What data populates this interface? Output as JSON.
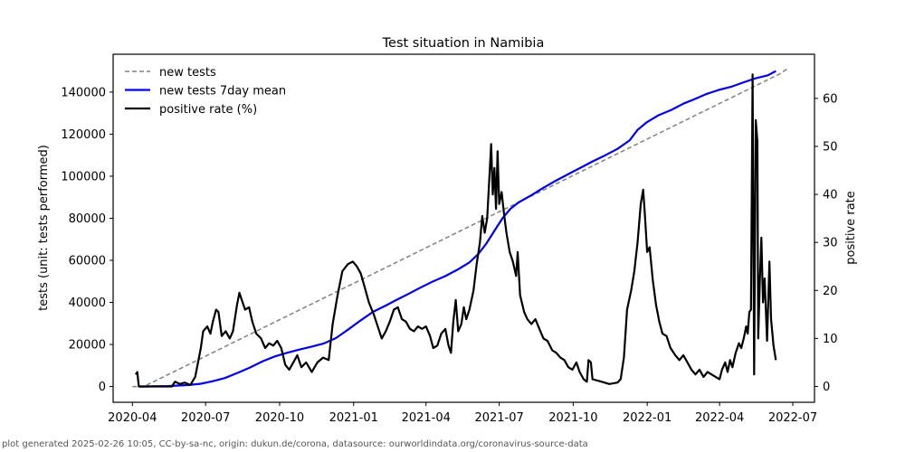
{
  "chart_data": {
    "type": "line",
    "title": "Test situation in Namibia",
    "xlabel": "",
    "ylabel": "tests (unit: tests performed)",
    "y2label": "positive rate",
    "x_ticks": [
      "2020-04",
      "2020-07",
      "2020-10",
      "2021-01",
      "2021-04",
      "2021-07",
      "2021-10",
      "2022-01",
      "2022-04",
      "2022-07"
    ],
    "y_ticks": [
      0,
      20000,
      40000,
      60000,
      80000,
      100000,
      120000,
      140000
    ],
    "y2_ticks": [
      0,
      10,
      20,
      30,
      40,
      50,
      60
    ],
    "xlim": [
      "2020-03-08",
      "2022-07-28"
    ],
    "ylim": [
      -7500,
      158000
    ],
    "y2lim": [
      -3.3,
      69.2
    ],
    "grid": false,
    "legend": {
      "position": "top-left",
      "entries": [
        "new tests",
        "new tests 7day mean",
        "positive rate (%)"
      ]
    },
    "series": [
      {
        "name": "new tests",
        "axis": "left",
        "color": "#808080",
        "style": "dashed",
        "points": [
          [
            "2020-04-01",
            0
          ],
          [
            "2020-04-15",
            0
          ],
          [
            "2022-06-14",
            148500
          ],
          [
            "2022-06-24",
            151000
          ]
        ]
      },
      {
        "name": "new tests 7day mean",
        "axis": "left",
        "color": "#0000ee",
        "style": "solid",
        "points": [
          [
            "2020-04-10",
            0
          ],
          [
            "2020-05-15",
            200
          ],
          [
            "2020-06-10",
            700
          ],
          [
            "2020-06-25",
            1300
          ],
          [
            "2020-07-10",
            2500
          ],
          [
            "2020-07-25",
            4000
          ],
          [
            "2020-08-10",
            6500
          ],
          [
            "2020-08-25",
            9000
          ],
          [
            "2020-09-10",
            12000
          ],
          [
            "2020-09-25",
            14300
          ],
          [
            "2020-10-10",
            16000
          ],
          [
            "2020-10-25",
            17500
          ],
          [
            "2020-11-10",
            19000
          ],
          [
            "2020-11-25",
            20500
          ],
          [
            "2020-12-10",
            23000
          ],
          [
            "2020-12-25",
            27000
          ],
          [
            "2021-01-10",
            31500
          ],
          [
            "2021-01-25",
            35500
          ],
          [
            "2021-02-10",
            38500
          ],
          [
            "2021-02-25",
            41500
          ],
          [
            "2021-03-10",
            44000
          ],
          [
            "2021-03-25",
            47000
          ],
          [
            "2021-04-10",
            50000
          ],
          [
            "2021-04-25",
            52500
          ],
          [
            "2021-05-10",
            55500
          ],
          [
            "2021-05-25",
            59000
          ],
          [
            "2021-06-05",
            63000
          ],
          [
            "2021-06-15",
            68000
          ],
          [
            "2021-06-25",
            74000
          ],
          [
            "2021-07-05",
            80000
          ],
          [
            "2021-07-15",
            84500
          ],
          [
            "2021-07-25",
            87500
          ],
          [
            "2021-08-10",
            91000
          ],
          [
            "2021-08-25",
            94500
          ],
          [
            "2021-09-10",
            98000
          ],
          [
            "2021-09-25",
            101000
          ],
          [
            "2021-10-10",
            104000
          ],
          [
            "2021-10-25",
            107000
          ],
          [
            "2021-11-10",
            110000
          ],
          [
            "2021-11-25",
            113000
          ],
          [
            "2021-12-10",
            117000
          ],
          [
            "2021-12-20",
            122000
          ],
          [
            "2021-12-31",
            125500
          ],
          [
            "2022-01-15",
            129000
          ],
          [
            "2022-01-31",
            131500
          ],
          [
            "2022-02-15",
            134500
          ],
          [
            "2022-02-28",
            136500
          ],
          [
            "2022-03-15",
            139000
          ],
          [
            "2022-03-31",
            141000
          ],
          [
            "2022-04-15",
            142500
          ],
          [
            "2022-04-30",
            144500
          ],
          [
            "2022-05-15",
            146500
          ],
          [
            "2022-05-31",
            148000
          ],
          [
            "2022-06-10",
            150000
          ]
        ]
      },
      {
        "name": "positive rate (%)",
        "axis": "right",
        "color": "#000000",
        "style": "solid",
        "points": [
          [
            "2020-04-05",
            2.5
          ],
          [
            "2020-04-07",
            3.0
          ],
          [
            "2020-04-09",
            0.0
          ],
          [
            "2020-05-20",
            0.0
          ],
          [
            "2020-05-24",
            1.0
          ],
          [
            "2020-05-30",
            0.5
          ],
          [
            "2020-06-05",
            0.8
          ],
          [
            "2020-06-12",
            0.3
          ],
          [
            "2020-06-18",
            2.0
          ],
          [
            "2020-06-25",
            8.0
          ],
          [
            "2020-06-28",
            11.5
          ],
          [
            "2020-07-03",
            12.5
          ],
          [
            "2020-07-07",
            11.0
          ],
          [
            "2020-07-10",
            13.5
          ],
          [
            "2020-07-14",
            16.0
          ],
          [
            "2020-07-17",
            15.5
          ],
          [
            "2020-07-21",
            10.5
          ],
          [
            "2020-07-26",
            11.5
          ],
          [
            "2020-07-31",
            10.0
          ],
          [
            "2020-08-04",
            11.5
          ],
          [
            "2020-08-09",
            17.0
          ],
          [
            "2020-08-12",
            19.5
          ],
          [
            "2020-08-15",
            18.0
          ],
          [
            "2020-08-19",
            16.0
          ],
          [
            "2020-08-24",
            16.5
          ],
          [
            "2020-08-28",
            13.5
          ],
          [
            "2020-09-02",
            11.0
          ],
          [
            "2020-09-08",
            10.0
          ],
          [
            "2020-09-13",
            8.0
          ],
          [
            "2020-09-18",
            9.0
          ],
          [
            "2020-09-23",
            8.5
          ],
          [
            "2020-09-28",
            9.5
          ],
          [
            "2020-10-03",
            8.0
          ],
          [
            "2020-10-08",
            4.5
          ],
          [
            "2020-10-13",
            3.5
          ],
          [
            "2020-10-18",
            5.0
          ],
          [
            "2020-10-23",
            6.5
          ],
          [
            "2020-10-28",
            4.0
          ],
          [
            "2020-11-03",
            5.0
          ],
          [
            "2020-11-10",
            3.0
          ],
          [
            "2020-11-17",
            5.0
          ],
          [
            "2020-11-24",
            6.0
          ],
          [
            "2020-12-01",
            5.5
          ],
          [
            "2020-12-06",
            13.0
          ],
          [
            "2020-12-12",
            19.0
          ],
          [
            "2020-12-18",
            24.0
          ],
          [
            "2020-12-25",
            25.5
          ],
          [
            "2020-12-31",
            26.0
          ],
          [
            "2021-01-05",
            25.0
          ],
          [
            "2021-01-10",
            23.5
          ],
          [
            "2021-01-15",
            20.5
          ],
          [
            "2021-01-20",
            17.5
          ],
          [
            "2021-01-26",
            15.0
          ],
          [
            "2021-02-01",
            12.0
          ],
          [
            "2021-02-05",
            10.0
          ],
          [
            "2021-02-10",
            11.5
          ],
          [
            "2021-02-15",
            13.5
          ],
          [
            "2021-02-20",
            16.0
          ],
          [
            "2021-02-25",
            16.5
          ],
          [
            "2021-03-02",
            14.0
          ],
          [
            "2021-03-07",
            13.5
          ],
          [
            "2021-03-12",
            12.0
          ],
          [
            "2021-03-17",
            11.5
          ],
          [
            "2021-03-22",
            12.5
          ],
          [
            "2021-03-27",
            12.0
          ],
          [
            "2021-04-01",
            12.5
          ],
          [
            "2021-04-06",
            10.5
          ],
          [
            "2021-04-10",
            8.0
          ],
          [
            "2021-04-15",
            8.5
          ],
          [
            "2021-04-20",
            11.0
          ],
          [
            "2021-04-25",
            12.0
          ],
          [
            "2021-04-29",
            8.5
          ],
          [
            "2021-05-02",
            7.0
          ],
          [
            "2021-05-05",
            13.5
          ],
          [
            "2021-05-08",
            18.0
          ],
          [
            "2021-05-11",
            11.5
          ],
          [
            "2021-05-15",
            13.0
          ],
          [
            "2021-05-18",
            16.5
          ],
          [
            "2021-05-21",
            14.0
          ],
          [
            "2021-05-25",
            16.0
          ],
          [
            "2021-05-30",
            20.0
          ],
          [
            "2021-06-03",
            25.5
          ],
          [
            "2021-06-07",
            30.0
          ],
          [
            "2021-06-10",
            35.5
          ],
          [
            "2021-06-13",
            32.0
          ],
          [
            "2021-06-16",
            35.0
          ],
          [
            "2021-06-19",
            44.0
          ],
          [
            "2021-06-21",
            50.5
          ],
          [
            "2021-06-23",
            40.0
          ],
          [
            "2021-06-25",
            45.5
          ],
          [
            "2021-06-27",
            37.0
          ],
          [
            "2021-06-29",
            49.0
          ],
          [
            "2021-07-01",
            38.0
          ],
          [
            "2021-07-04",
            40.5
          ],
          [
            "2021-07-07",
            36.0
          ],
          [
            "2021-07-10",
            32.0
          ],
          [
            "2021-07-14",
            28.0
          ],
          [
            "2021-07-18",
            26.0
          ],
          [
            "2021-07-22",
            23.0
          ],
          [
            "2021-07-24",
            28.0
          ],
          [
            "2021-07-27",
            19.0
          ],
          [
            "2021-08-01",
            15.5
          ],
          [
            "2021-08-05",
            14.0
          ],
          [
            "2021-08-10",
            13.0
          ],
          [
            "2021-08-15",
            14.0
          ],
          [
            "2021-08-20",
            12.0
          ],
          [
            "2021-08-25",
            10.0
          ],
          [
            "2021-08-30",
            9.5
          ],
          [
            "2021-09-05",
            7.5
          ],
          [
            "2021-09-10",
            7.0
          ],
          [
            "2021-09-15",
            6.0
          ],
          [
            "2021-09-20",
            5.5
          ],
          [
            "2021-09-25",
            4.0
          ],
          [
            "2021-09-30",
            3.5
          ],
          [
            "2021-10-05",
            5.0
          ],
          [
            "2021-10-09",
            3.0
          ],
          [
            "2021-10-14",
            1.5
          ],
          [
            "2021-10-18",
            1.0
          ],
          [
            "2021-10-20",
            5.5
          ],
          [
            "2021-10-23",
            5.0
          ],
          [
            "2021-10-25",
            1.5
          ],
          [
            "2021-11-05",
            1.0
          ],
          [
            "2021-11-15",
            0.5
          ],
          [
            "2021-11-25",
            0.8
          ],
          [
            "2021-11-29",
            1.5
          ],
          [
            "2021-12-03",
            6.0
          ],
          [
            "2021-12-07",
            16.0
          ],
          [
            "2021-12-12",
            20.0
          ],
          [
            "2021-12-16",
            24.0
          ],
          [
            "2021-12-20",
            30.0
          ],
          [
            "2021-12-24",
            38.0
          ],
          [
            "2021-12-27",
            41.0
          ],
          [
            "2021-12-29",
            36.0
          ],
          [
            "2022-01-01",
            28.0
          ],
          [
            "2022-01-04",
            29.0
          ],
          [
            "2022-01-08",
            22.0
          ],
          [
            "2022-01-12",
            17.0
          ],
          [
            "2022-01-16",
            13.5
          ],
          [
            "2022-01-20",
            11.0
          ],
          [
            "2022-01-25",
            10.5
          ],
          [
            "2022-01-30",
            8.0
          ],
          [
            "2022-02-05",
            6.5
          ],
          [
            "2022-02-10",
            5.5
          ],
          [
            "2022-02-15",
            6.5
          ],
          [
            "2022-02-20",
            5.0
          ],
          [
            "2022-02-25",
            3.5
          ],
          [
            "2022-03-02",
            2.5
          ],
          [
            "2022-03-07",
            3.5
          ],
          [
            "2022-03-12",
            2.0
          ],
          [
            "2022-03-17",
            3.0
          ],
          [
            "2022-03-22",
            2.5
          ],
          [
            "2022-03-27",
            2.0
          ],
          [
            "2022-04-01",
            1.5
          ],
          [
            "2022-04-04",
            3.5
          ],
          [
            "2022-04-08",
            5.0
          ],
          [
            "2022-04-11",
            3.0
          ],
          [
            "2022-04-14",
            5.5
          ],
          [
            "2022-04-17",
            4.0
          ],
          [
            "2022-04-21",
            7.0
          ],
          [
            "2022-04-25",
            9.0
          ],
          [
            "2022-04-28",
            8.0
          ],
          [
            "2022-05-01",
            10.0
          ],
          [
            "2022-05-04",
            12.5
          ],
          [
            "2022-05-06",
            11.0
          ],
          [
            "2022-05-08",
            15.5
          ],
          [
            "2022-05-10",
            16.0
          ],
          [
            "2022-05-12",
            65.0
          ],
          [
            "2022-05-14",
            2.5
          ],
          [
            "2022-05-16",
            55.5
          ],
          [
            "2022-05-18",
            51.0
          ],
          [
            "2022-05-19",
            10.0
          ],
          [
            "2022-05-21",
            22.0
          ],
          [
            "2022-05-23",
            31.0
          ],
          [
            "2022-05-25",
            17.5
          ],
          [
            "2022-05-27",
            22.5
          ],
          [
            "2022-05-30",
            9.5
          ],
          [
            "2022-06-02",
            26.0
          ],
          [
            "2022-06-04",
            14.0
          ],
          [
            "2022-06-07",
            8.5
          ],
          [
            "2022-06-10",
            5.5
          ]
        ]
      }
    ]
  },
  "footer": {
    "text": "plot generated 2025-02-26 10:05, CC-by-sa-nc, origin: dukun.de/corona, datasource: ourworldindata.org/coronavirus-source-data"
  }
}
